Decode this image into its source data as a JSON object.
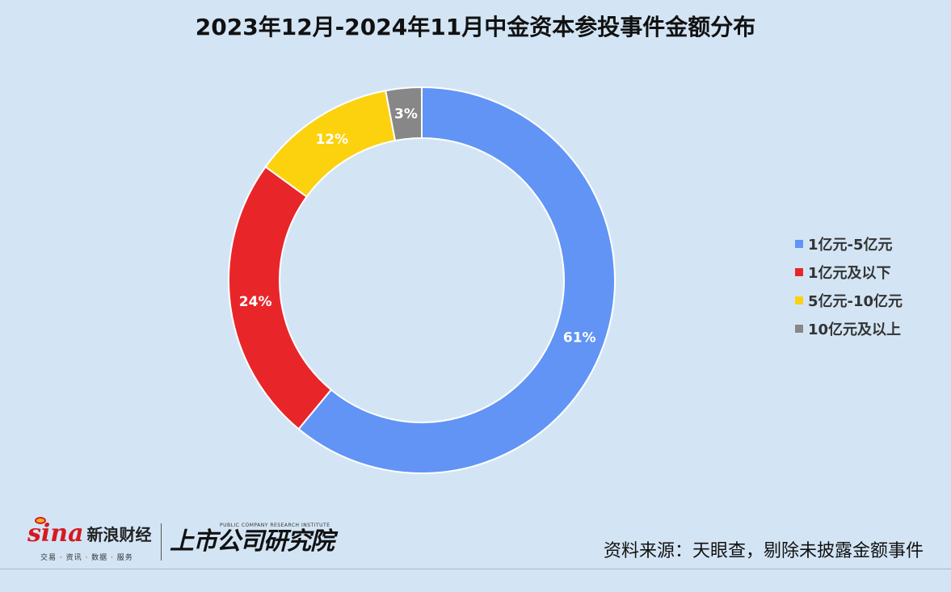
{
  "title": "2023年12月-2024年11月中金资本参投事件金额分布",
  "chart_data": {
    "type": "pie",
    "donut": true,
    "title": "2023年12月-2024年11月中金资本参投事件金额分布",
    "categories": [
      "1亿元-5亿元",
      "1亿元及以下",
      "5亿元-10亿元",
      "10亿元及以上"
    ],
    "values": [
      61,
      24,
      12,
      3
    ],
    "labels": [
      "61%",
      "24%",
      "12%",
      "3%"
    ],
    "colors": [
      "#6194f5",
      "#e8262a",
      "#fcd10e",
      "#878787"
    ],
    "start": "12 o'clock",
    "direction": "clockwise",
    "legend_position": "right"
  },
  "legend": {
    "items": [
      {
        "label": "1亿元-5亿元",
        "color": "#6194f5"
      },
      {
        "label": "1亿元及以下",
        "color": "#e8262a"
      },
      {
        "label": "5亿元-10亿元",
        "color": "#fcd10e"
      },
      {
        "label": "10亿元及以上",
        "color": "#878787"
      }
    ]
  },
  "footer": {
    "sina_logo": "sina",
    "sina_name": "新浪财经",
    "sina_sub": "交易 · 资讯 · 数据 · 服务",
    "institute_en": "PUBLIC COMPANY RESEARCH INSTITUTE",
    "institute_cn": "上市公司研究院",
    "source": "资料来源：天眼查，剔除未披露金额事件"
  }
}
